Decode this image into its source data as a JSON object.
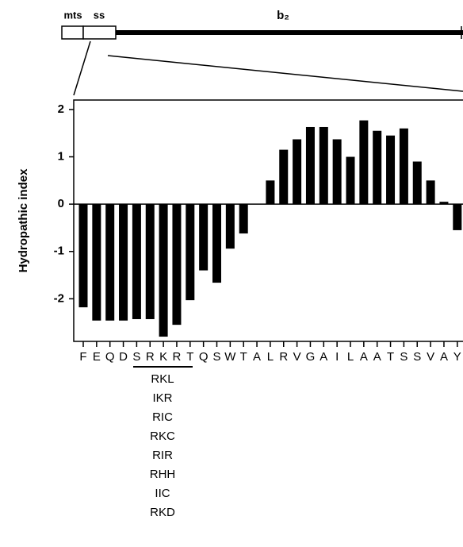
{
  "chart_data": {
    "type": "bar",
    "annotations": [
      "mts",
      "ss",
      "b₂"
    ],
    "ylabel": "Hydropathic index",
    "categories": [
      "F",
      "E",
      "Q",
      "D",
      "S",
      "R",
      "K",
      "R",
      "T",
      "Q",
      "S",
      "W",
      "T",
      "A",
      "L",
      "R",
      "V",
      "G",
      "A",
      "I",
      "L",
      "A",
      "A",
      "T",
      "S",
      "S",
      "V",
      "A",
      "Y"
    ],
    "values": [
      -2.18,
      -2.46,
      -2.46,
      -2.46,
      -2.43,
      -2.43,
      -2.8,
      -2.55,
      -2.03,
      -1.4,
      -1.66,
      -0.94,
      -0.62,
      0,
      0.5,
      1.15,
      1.37,
      1.63,
      1.63,
      1.37,
      1.0,
      1.77,
      1.55,
      1.45,
      1.6,
      0.9,
      0.5,
      0.05,
      -0.55
    ],
    "color": "#000000",
    "ylim": [
      -2.9,
      2.2
    ],
    "yticks": [
      2,
      1,
      0,
      -1,
      -2
    ],
    "mutations": [
      "RKL",
      "IKR",
      "RIC",
      "RKC",
      "RIR",
      "RHH",
      "IIC",
      "RKD"
    ]
  }
}
